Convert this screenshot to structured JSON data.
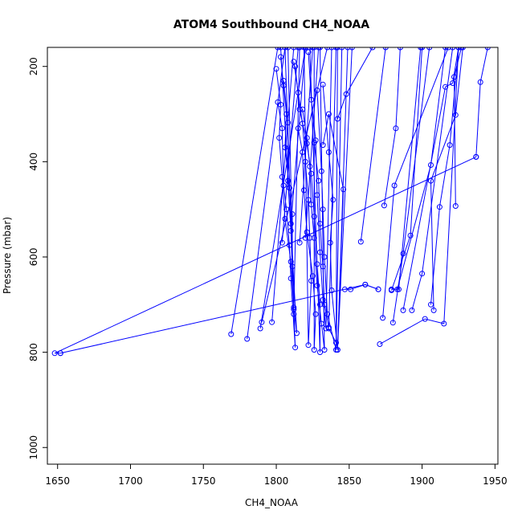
{
  "chart_data": {
    "type": "line",
    "title": "ATOM4 Southbound CH4_NOAA",
    "xlabel": "CH4_NOAA",
    "ylabel": "Pressure (mbar)",
    "xlim": [
      1643,
      1952
    ],
    "ylim": [
      1035,
      160
    ],
    "y_reversed": true,
    "x_ticks": [
      1650,
      1700,
      1750,
      1800,
      1850,
      1900,
      1950
    ],
    "y_ticks": [
      200,
      400,
      600,
      800,
      1000
    ],
    "grid": false,
    "legend": "none",
    "markers": "open-circle",
    "series_color": "#0000ff",
    "series": [
      {
        "points": [
          [
            1652,
            802
          ],
          [
            1648,
            802
          ],
          [
            1937,
            390
          ]
        ]
      },
      {
        "points": [
          [
            1652,
            802
          ],
          [
            1861,
            658
          ],
          [
            1870,
            668
          ]
        ]
      },
      {
        "points": [
          [
            1769,
            762
          ],
          [
            1801,
            160
          ]
        ]
      },
      {
        "points": [
          [
            1780,
            772
          ],
          [
            1806,
            160
          ]
        ]
      },
      {
        "points": [
          [
            1789,
            750
          ],
          [
            1820,
            160
          ]
        ]
      },
      {
        "points": [
          [
            1790,
            737
          ],
          [
            1835,
            160
          ]
        ]
      },
      {
        "points": [
          [
            1797,
            737
          ],
          [
            1812,
            160
          ]
        ]
      },
      {
        "points": [
          [
            1800,
            205
          ],
          [
            1803,
            280
          ],
          [
            1802,
            350
          ],
          [
            1804,
            432
          ],
          [
            1806,
            520
          ],
          [
            1810,
            610
          ],
          [
            1812,
            706
          ],
          [
            1814,
            760
          ],
          [
            1803,
            160
          ]
        ]
      },
      {
        "points": [
          [
            1801,
            275
          ],
          [
            1804,
            330
          ],
          [
            1805,
            450
          ],
          [
            1807,
            500
          ],
          [
            1809,
            575
          ],
          [
            1810,
            645
          ],
          [
            1813,
            790
          ],
          [
            1806,
            160
          ]
        ]
      },
      {
        "points": [
          [
            1803,
            180
          ],
          [
            1805,
            240
          ],
          [
            1807,
            300
          ],
          [
            1806,
            370
          ],
          [
            1809,
            455
          ],
          [
            1811,
            510
          ],
          [
            1811,
            620
          ],
          [
            1812,
            720
          ],
          [
            1808,
            160
          ]
        ]
      },
      {
        "points": [
          [
            1805,
            230
          ],
          [
            1808,
            318
          ],
          [
            1808,
            440
          ],
          [
            1810,
            545
          ],
          [
            1812,
            710
          ],
          [
            1816,
            160
          ]
        ]
      },
      {
        "points": [
          [
            1812,
            190
          ],
          [
            1815,
            255
          ],
          [
            1818,
            320
          ],
          [
            1820,
            400
          ],
          [
            1822,
            480
          ],
          [
            1823,
            560
          ],
          [
            1824,
            650
          ],
          [
            1822,
            785
          ],
          [
            1819,
            160
          ]
        ]
      },
      {
        "points": [
          [
            1813,
            200
          ],
          [
            1816,
            290
          ],
          [
            1821,
            362
          ],
          [
            1824,
            425
          ],
          [
            1826,
            515
          ],
          [
            1828,
            615
          ],
          [
            1830,
            700
          ],
          [
            1830,
            800
          ],
          [
            1823,
            160
          ]
        ]
      },
      {
        "points": [
          [
            1815,
            330
          ],
          [
            1818,
            380
          ],
          [
            1819,
            460
          ],
          [
            1821,
            548
          ],
          [
            1825,
            640
          ],
          [
            1827,
            720
          ],
          [
            1826,
            795
          ],
          [
            1826,
            160
          ]
        ]
      },
      {
        "points": [
          [
            1818,
            290
          ],
          [
            1821,
            350
          ],
          [
            1823,
            410
          ],
          [
            1824,
            490
          ],
          [
            1826,
            560
          ],
          [
            1828,
            660
          ],
          [
            1831,
            740
          ],
          [
            1833,
            795
          ],
          [
            1830,
            160
          ]
        ]
      },
      {
        "points": [
          [
            1822,
            170
          ],
          [
            1824,
            270
          ],
          [
            1827,
            355
          ],
          [
            1828,
            470
          ],
          [
            1830,
            590
          ],
          [
            1832,
            690
          ],
          [
            1834,
            750
          ],
          [
            1838,
            160
          ]
        ]
      },
      {
        "points": [
          [
            1826,
            360
          ],
          [
            1829,
            440
          ],
          [
            1830,
            530
          ],
          [
            1832,
            620
          ],
          [
            1833,
            700
          ],
          [
            1836,
            748
          ],
          [
            1841,
            160
          ]
        ]
      },
      {
        "points": [
          [
            1828,
            250
          ],
          [
            1831,
            420
          ],
          [
            1832,
            500
          ],
          [
            1833,
            600
          ],
          [
            1835,
            720
          ],
          [
            1841,
            795
          ],
          [
            1845,
            160
          ]
        ]
      },
      {
        "points": [
          [
            1832,
            238
          ],
          [
            1836,
            380
          ],
          [
            1839,
            480
          ],
          [
            1837,
            570
          ],
          [
            1838,
            670
          ],
          [
            1842,
            795
          ],
          [
            1849,
            160
          ]
        ]
      },
      {
        "points": [
          [
            1832,
            365
          ],
          [
            1836,
            300
          ],
          [
            1846,
            458
          ],
          [
            1842,
            795
          ],
          [
            1852,
            160
          ]
        ]
      },
      {
        "points": [
          [
            1842,
            310
          ],
          [
            1848,
            258
          ],
          [
            1866,
            160
          ]
        ]
      },
      {
        "points": [
          [
            1858,
            568
          ],
          [
            1875,
            160
          ]
        ]
      },
      {
        "points": [
          [
            1874,
            492
          ],
          [
            1882,
            330
          ],
          [
            1885,
            160
          ]
        ]
      },
      {
        "points": [
          [
            1871,
            783
          ],
          [
            1902,
            730
          ],
          [
            1915,
            740
          ],
          [
            1925,
            160
          ]
        ]
      },
      {
        "points": [
          [
            1879,
            670
          ],
          [
            1892,
            555
          ],
          [
            1900,
            160
          ]
        ]
      },
      {
        "points": [
          [
            1880,
            738
          ],
          [
            1887,
            593
          ],
          [
            1905,
            160
          ]
        ]
      },
      {
        "points": [
          [
            1883,
            668
          ],
          [
            1906,
            407
          ],
          [
            1916,
            160
          ]
        ]
      },
      {
        "points": [
          [
            1873,
            728
          ],
          [
            1881,
            450
          ],
          [
            1918,
            160
          ]
        ]
      },
      {
        "points": [
          [
            1893,
            712
          ],
          [
            1900,
            635
          ],
          [
            1921,
            160
          ]
        ]
      },
      {
        "points": [
          [
            1906,
            700
          ],
          [
            1912,
            495
          ],
          [
            1919,
            365
          ],
          [
            1925,
            160
          ]
        ]
      },
      {
        "points": [
          [
            1908,
            712
          ],
          [
            1906,
            440
          ],
          [
            1923,
            302
          ],
          [
            1928,
            160
          ]
        ]
      },
      {
        "points": [
          [
            1887,
            712
          ],
          [
            1916,
            243
          ],
          [
            1921,
            235
          ],
          [
            1925,
            160
          ]
        ]
      },
      {
        "points": [
          [
            1923,
            493
          ],
          [
            1922,
            222
          ],
          [
            1927,
            160
          ]
        ]
      },
      {
        "points": [
          [
            1937,
            390
          ],
          [
            1940,
            233
          ],
          [
            1945,
            160
          ]
        ]
      },
      {
        "points": [
          [
            1847,
            668
          ],
          [
            1851,
            668
          ],
          [
            1861,
            658
          ],
          [
            1870,
            668
          ]
        ]
      },
      {
        "points": [
          [
            1879,
            668
          ],
          [
            1884,
            668
          ],
          [
            1899,
            160
          ]
        ]
      },
      {
        "points": [
          [
            1804,
            570
          ],
          [
            1815,
            160
          ]
        ]
      },
      {
        "points": [
          [
            1810,
            530
          ],
          [
            1820,
            160
          ]
        ]
      },
      {
        "points": [
          [
            1816,
            570
          ],
          [
            1825,
            160
          ]
        ]
      },
      {
        "points": [
          [
            1820,
            560
          ],
          [
            1829,
            160
          ]
        ]
      },
      {
        "points": [
          [
            1836,
            750
          ],
          [
            1841,
            780
          ],
          [
            1842,
            160
          ]
        ]
      }
    ]
  }
}
